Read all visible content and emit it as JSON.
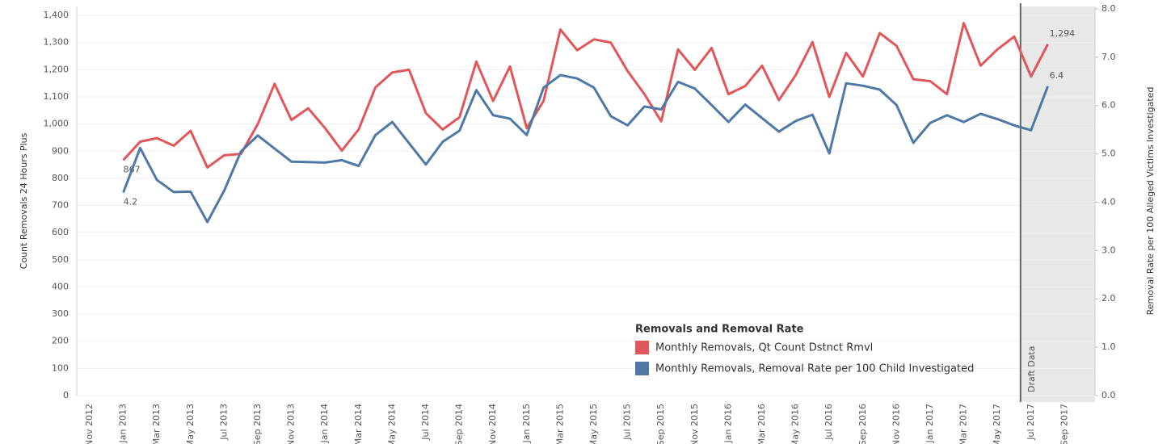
{
  "chart_data": {
    "type": "line",
    "y_label": "Count Removals 24 Hours Plus",
    "y2_label": "Removal Rate per 100 Alleged Victims Investigated",
    "categories": [
      "Nov 2012",
      null,
      "Jan 2013",
      null,
      "Mar 2013",
      null,
      "May 2013",
      null,
      "Jul 2013",
      null,
      "Sep 2013",
      null,
      "Nov 2013",
      null,
      "Jan 2014",
      null,
      "Mar 2014",
      null,
      "May 2014",
      null,
      "Jul 2014",
      null,
      "Sep 2014",
      null,
      "Nov 2014",
      null,
      "Jan 2015",
      null,
      "Mar 2015",
      null,
      "May 2015",
      null,
      "Jul 2015",
      null,
      "Sep 2015",
      null,
      "Nov 2015",
      null,
      "Jan 2016",
      null,
      "Mar 2016",
      null,
      "May 2016",
      null,
      "Jul 2016",
      null,
      "Sep 2016",
      null,
      "Nov 2016",
      null,
      "Jan 2017",
      null,
      "Mar 2017",
      null,
      "May 2017",
      null,
      "Jul 2017",
      null,
      "Sep 2017"
    ],
    "series": [
      {
        "name": "Monthly Removals, Qt Count Dstnct Rmvl",
        "color": "#e15759",
        "axis": "y",
        "values": [
          null,
          null,
          867,
          935,
          948,
          920,
          975,
          840,
          885,
          890,
          1000,
          1148,
          1015,
          1058,
          985,
          902,
          980,
          1135,
          1190,
          1200,
          1040,
          980,
          1025,
          1230,
          1085,
          1212,
          985,
          1085,
          1348,
          1272,
          1312,
          1300,
          1195,
          1110,
          1010,
          1275,
          1200,
          1280,
          1110,
          1140,
          1215,
          1088,
          1180,
          1302,
          1100,
          1262,
          1175,
          1335,
          1288,
          1165,
          1158,
          1110,
          1372,
          1215,
          1275,
          1322,
          1175,
          1294,
          null
        ],
        "value_labels": [
          null,
          null,
          "867",
          null,
          null,
          null,
          null,
          null,
          null,
          null,
          null,
          null,
          null,
          null,
          null,
          null,
          null,
          null,
          null,
          null,
          null,
          null,
          null,
          null,
          null,
          null,
          null,
          null,
          null,
          null,
          null,
          null,
          null,
          null,
          null,
          null,
          null,
          null,
          null,
          null,
          null,
          null,
          null,
          null,
          null,
          null,
          null,
          null,
          null,
          null,
          null,
          null,
          null,
          null,
          null,
          null,
          null,
          "1,294",
          null
        ]
      },
      {
        "name": "Monthly Removals, Removal Rate per 100 Child Investigated",
        "color": "#4e79a7",
        "axis": "y2",
        "values": [
          null,
          null,
          4.2,
          5.12,
          4.46,
          4.21,
          4.22,
          3.59,
          4.24,
          5.05,
          5.38,
          5.11,
          4.84,
          4.83,
          4.82,
          4.87,
          4.75,
          5.39,
          5.66,
          5.22,
          4.78,
          5.25,
          5.48,
          6.32,
          5.8,
          5.73,
          5.39,
          6.37,
          6.63,
          6.56,
          6.37,
          5.78,
          5.59,
          5.98,
          5.92,
          6.49,
          6.35,
          6.01,
          5.66,
          6.02,
          5.74,
          5.46,
          5.68,
          5.81,
          5.01,
          6.46,
          6.41,
          6.33,
          6.01,
          5.23,
          5.64,
          5.8,
          5.66,
          5.83,
          5.72,
          5.59,
          5.49,
          6.4,
          null
        ],
        "value_labels": [
          null,
          null,
          "4.2",
          null,
          null,
          null,
          null,
          null,
          null,
          null,
          null,
          null,
          null,
          null,
          null,
          null,
          null,
          null,
          null,
          null,
          null,
          null,
          null,
          null,
          null,
          null,
          null,
          null,
          null,
          null,
          null,
          null,
          null,
          null,
          null,
          null,
          null,
          null,
          null,
          null,
          null,
          null,
          null,
          null,
          null,
          null,
          null,
          null,
          null,
          null,
          null,
          null,
          null,
          null,
          null,
          null,
          null,
          "6.4",
          null
        ]
      }
    ],
    "legend_title": "Removals and Removal Rate",
    "shaded_region": {
      "label": "Draft Data",
      "start": "Jul 2017"
    },
    "ylim": [
      0,
      1433
    ],
    "yticks": [
      0,
      100,
      200,
      300,
      400,
      500,
      600,
      700,
      800,
      900,
      {
        "value": 1000,
        "label": "1,000"
      },
      {
        "value": 1100,
        "label": "1,100"
      },
      {
        "value": 1200,
        "label": "1,200"
      },
      {
        "value": 1300,
        "label": "1,300"
      },
      {
        "value": 1400,
        "label": "1,400"
      }
    ],
    "y2lim": [
      0,
      8.05
    ],
    "y2ticks": [
      {
        "value": 0,
        "label": "0.0"
      },
      {
        "value": 1,
        "label": "1.0"
      },
      {
        "value": 2,
        "label": "2.0"
      },
      {
        "value": 3,
        "label": "3.0"
      },
      {
        "value": 4,
        "label": "4.0"
      },
      {
        "value": 5,
        "label": "5.0"
      },
      {
        "value": 6,
        "label": "6.0"
      },
      {
        "value": 7,
        "label": "7.0"
      },
      {
        "value": 8,
        "label": "8.0"
      }
    ],
    "grid": true
  }
}
